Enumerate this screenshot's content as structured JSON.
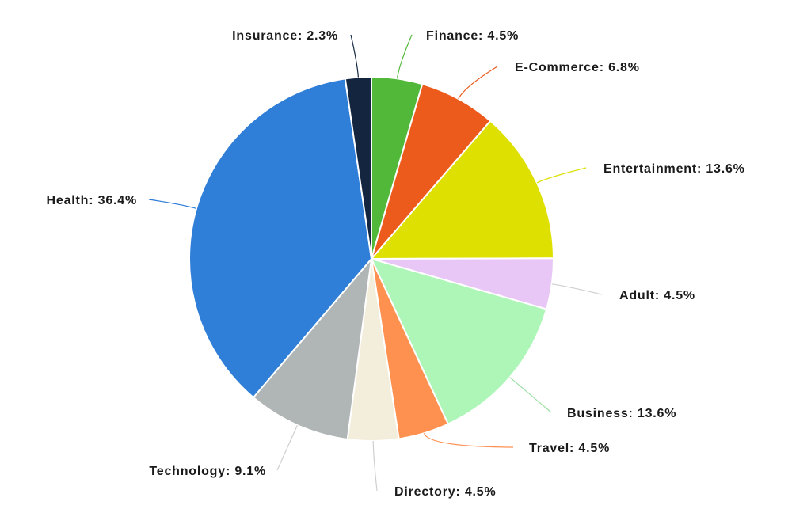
{
  "chart_data": {
    "type": "pie",
    "title": "",
    "slices": [
      {
        "label": "Finance",
        "value": 4.5,
        "display": "Finance: 4.5%",
        "color": "#52b83a"
      },
      {
        "label": "E-Commerce",
        "value": 6.8,
        "display": "E-Commerce: 6.8%",
        "color": "#ec5a1c"
      },
      {
        "label": "Entertainment",
        "value": 13.6,
        "display": "Entertainment: 13.6%",
        "color": "#dde000"
      },
      {
        "label": "Adult",
        "value": 4.5,
        "display": "Adult: 4.5%",
        "color": "#e8c7f7"
      },
      {
        "label": "Business",
        "value": 13.6,
        "display": "Business: 13.6%",
        "color": "#aef5b8"
      },
      {
        "label": "Travel",
        "value": 4.5,
        "display": "Travel: 4.5%",
        "color": "#ff9150"
      },
      {
        "label": "Directory",
        "value": 4.5,
        "display": "Directory: 4.5%",
        "color": "#f3eedb"
      },
      {
        "label": "Technology",
        "value": 9.1,
        "display": "Technology: 9.1%",
        "color": "#b0b5b6"
      },
      {
        "label": "Health",
        "value": 36.4,
        "display": "Health: 36.4%",
        "color": "#2f7ed8"
      },
      {
        "label": "Insurance",
        "value": 2.3,
        "display": "Insurance: 2.3%",
        "color": "#13253f"
      }
    ],
    "leader_colors": {
      "Finance": "#52b83a",
      "E-Commerce": "#ec5a1c",
      "Entertainment": "#dde000",
      "Adult": "#cfcfcf",
      "Business": "#9fe0a9",
      "Travel": "#ff9150",
      "Directory": "#cfcfcf",
      "Technology": "#cfcfcf",
      "Health": "#2f7ed8",
      "Insurance": "#13253f"
    }
  }
}
